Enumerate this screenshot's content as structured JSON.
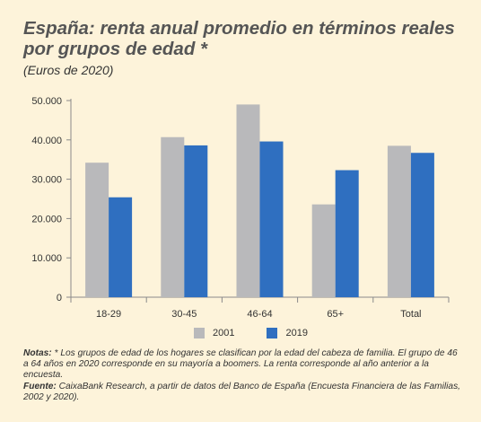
{
  "title": "España: renta anual promedio en términos reales por grupos de edad *",
  "subtitle": "(Euros de 2020)",
  "colors": {
    "s2001": "#b9b9bb",
    "s2019": "#2f6fc0",
    "axis": "#8a8a8a"
  },
  "chart_data": {
    "type": "bar",
    "title": "España: renta anual promedio en términos reales por grupos de edad *",
    "subtitle": "(Euros de 2020)",
    "categories": [
      "18-29",
      "30-45",
      "46-64",
      "65+",
      "Total"
    ],
    "series": [
      {
        "name": "2001",
        "values": [
          34200,
          40700,
          49000,
          23600,
          38500
        ]
      },
      {
        "name": "2019",
        "values": [
          25400,
          38600,
          39600,
          32300,
          36700
        ]
      }
    ],
    "ylim": [
      0,
      50000
    ],
    "yticks": [
      "0",
      "10.000",
      "20.000",
      "30.000",
      "40.000",
      "50.000"
    ],
    "ytick_values": [
      0,
      10000,
      20000,
      30000,
      40000,
      50000
    ],
    "grid": false,
    "legend": "bottom"
  },
  "notes": {
    "label": "Notas:",
    "text": "* Los grupos de edad de los hogares se clasifican por la edad del cabeza de familia. El grupo de 46 a 64 años en 2020 corresponde en su mayoría a boomers. La renta corresponde al año anterior a la encuesta."
  },
  "source": {
    "label": "Fuente:",
    "text": "CaixaBank Research, a partir de datos del Banco de España (Encuesta Financiera de las Familias, 2002 y 2020)."
  }
}
